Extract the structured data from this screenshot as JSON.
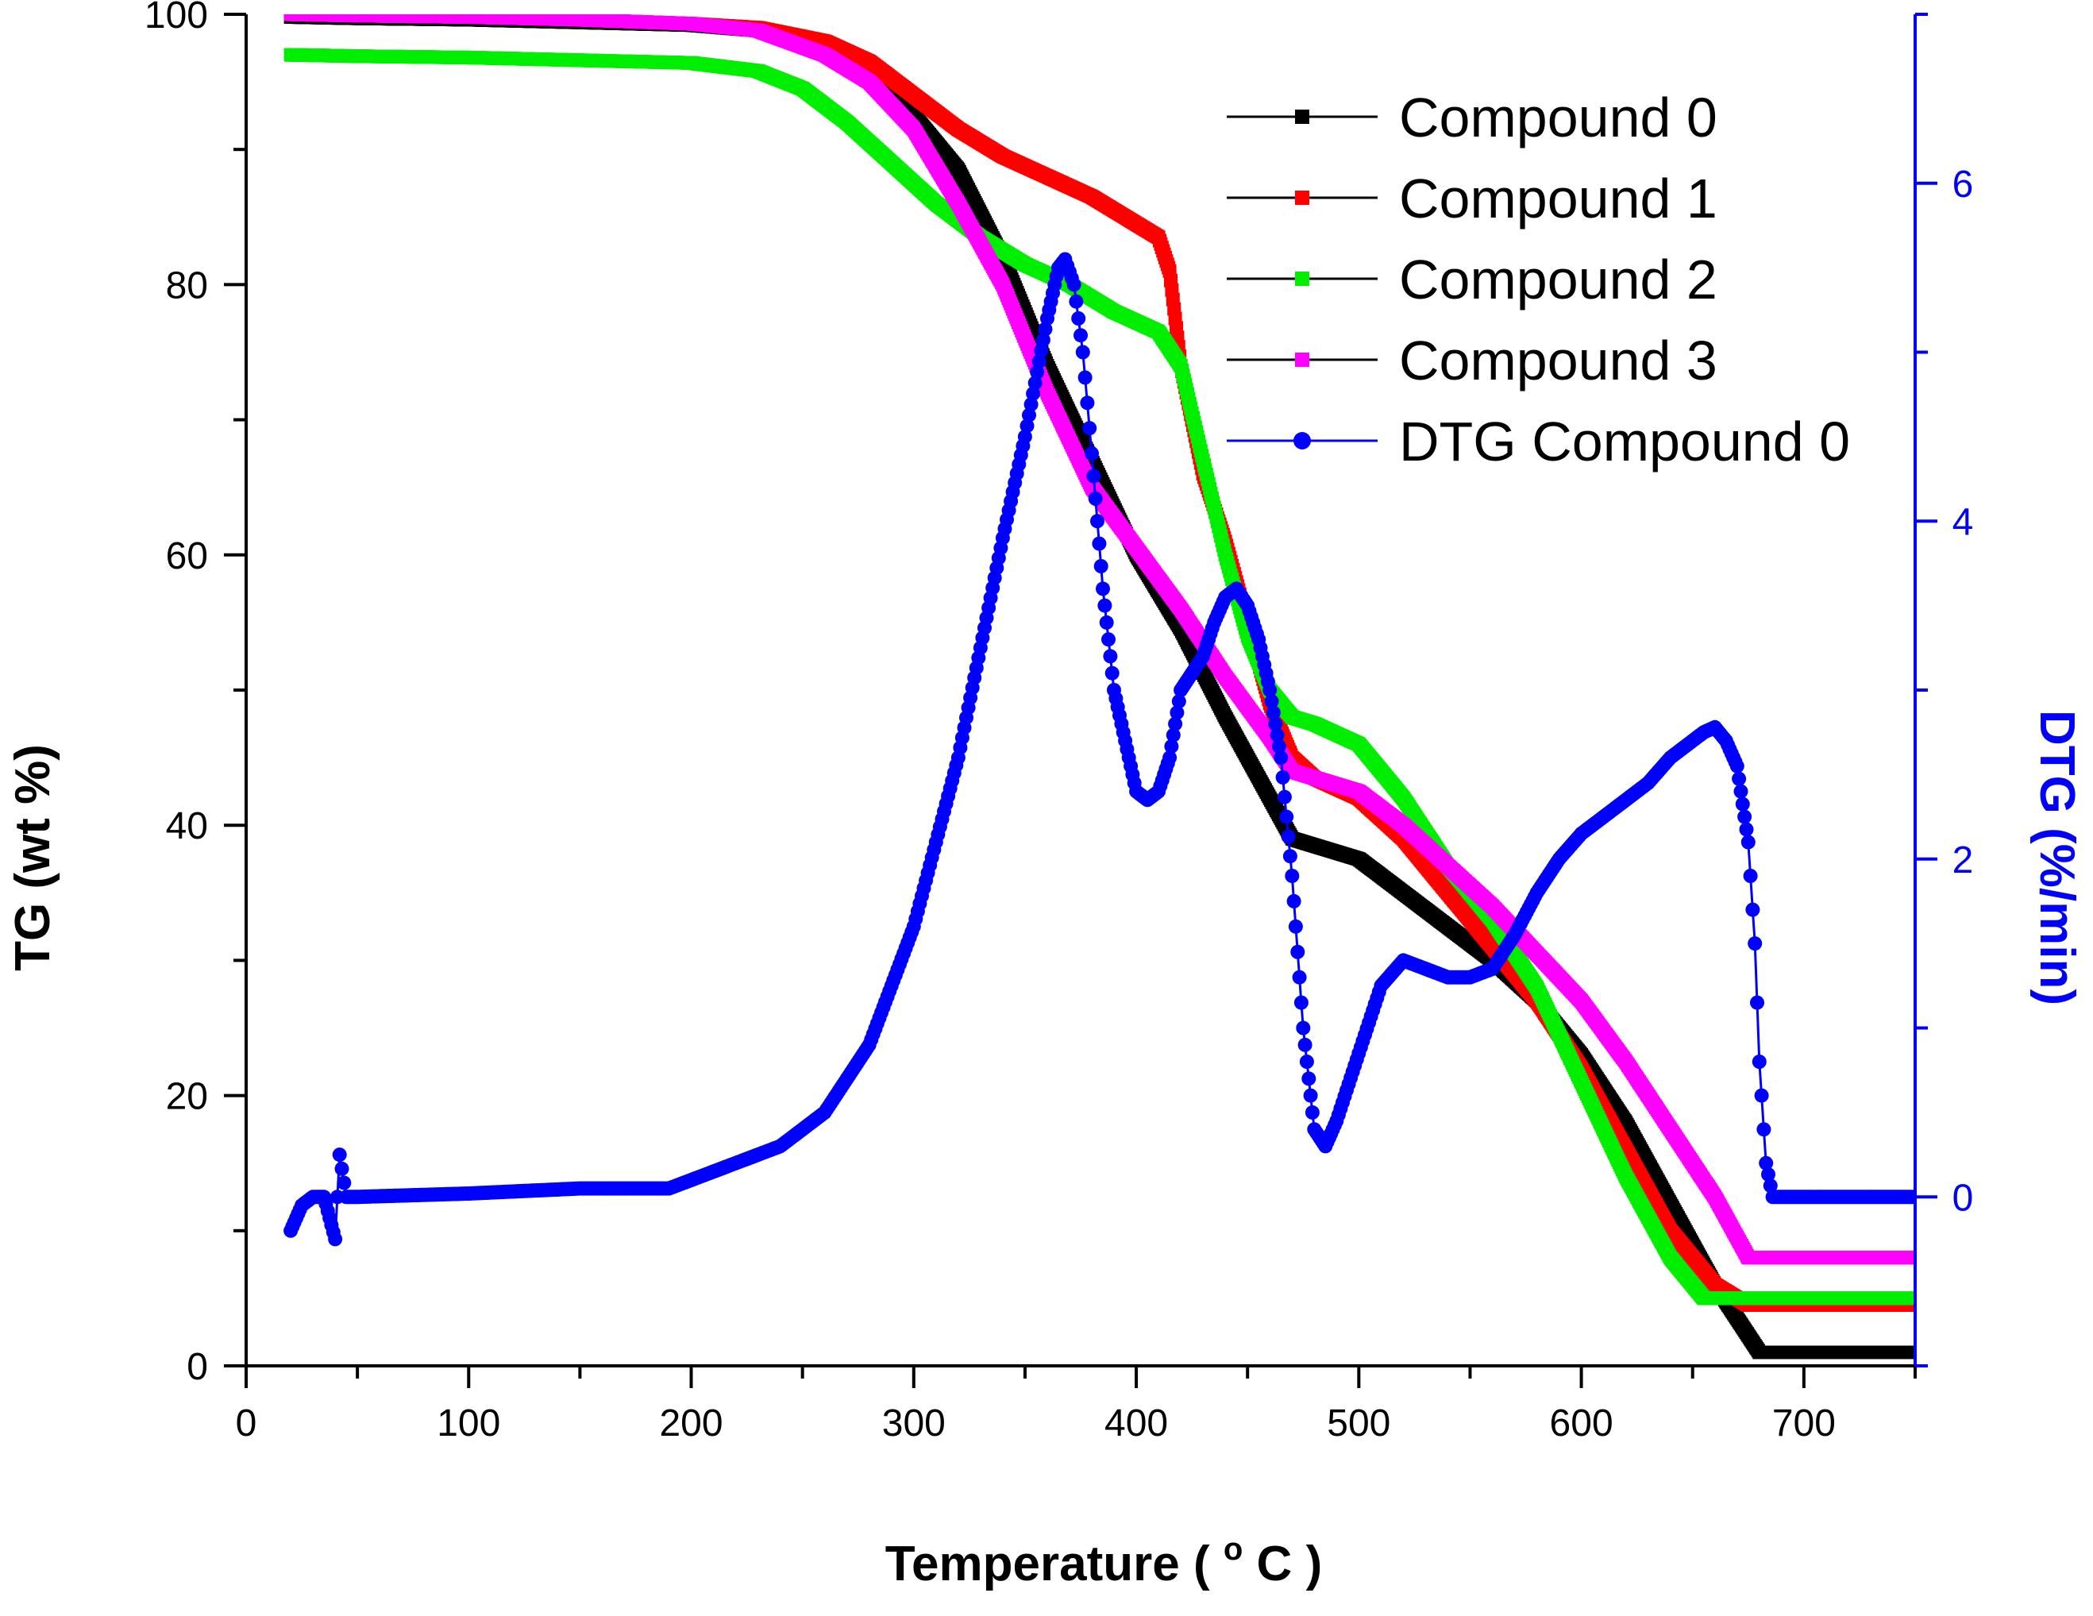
{
  "chart_data": {
    "type": "line",
    "title": "",
    "xlabel": "Temperature",
    "xlabel_unit_sup": "o",
    "xlabel_unit": "C",
    "ylabel": "TG (wt %)",
    "y2label": "DTG (%/min)",
    "xlim": [
      0,
      750
    ],
    "ylim": [
      0,
      100
    ],
    "y2lim": [
      -1,
      7
    ],
    "x_ticks": [
      0,
      100,
      200,
      300,
      400,
      500,
      600,
      700
    ],
    "y_ticks": [
      0,
      20,
      40,
      60,
      80,
      100
    ],
    "y2_ticks": [
      0,
      2,
      4,
      6
    ],
    "legend_position": "top-right",
    "colors": {
      "axis_left": "#000000",
      "axis_right": "#0000ff"
    },
    "series": [
      {
        "name": "Compound 0",
        "axis": "left",
        "color": "#000000",
        "marker": "square",
        "x": [
          20,
          50,
          100,
          150,
          200,
          230,
          260,
          280,
          300,
          320,
          340,
          360,
          380,
          400,
          420,
          440,
          460,
          470,
          480,
          500,
          520,
          540,
          560,
          580,
          600,
          620,
          640,
          660,
          680,
          700,
          750
        ],
        "y": [
          99.8,
          99.7,
          99.6,
          99.4,
          99.2,
          98.8,
          97.5,
          95.5,
          92.5,
          88.5,
          82,
          74,
          67,
          60,
          54.5,
          48,
          42,
          39,
          38.5,
          37.5,
          35,
          32.5,
          30,
          27,
          23,
          18,
          12,
          6,
          1,
          1,
          1
        ]
      },
      {
        "name": "Compound 1",
        "axis": "left",
        "color": "#ff0000",
        "marker": "square",
        "x": [
          20,
          50,
          100,
          150,
          200,
          230,
          260,
          280,
          300,
          320,
          340,
          360,
          380,
          400,
          410,
          415,
          420,
          430,
          440,
          450,
          460,
          470,
          480,
          500,
          520,
          540,
          560,
          580,
          600,
          620,
          640,
          660,
          675,
          700,
          750
        ],
        "y": [
          100,
          99.9,
          99.8,
          99.6,
          99.3,
          99,
          98,
          96.5,
          94,
          91.5,
          89.5,
          88,
          86.5,
          84.5,
          83.5,
          81,
          74,
          66,
          61,
          55,
          49,
          45,
          43.5,
          42,
          39,
          35,
          31,
          27,
          22,
          16,
          10,
          6,
          4.5,
          4.5,
          4.5
        ]
      },
      {
        "name": "Compound 2",
        "axis": "left",
        "color": "#00ee00",
        "marker": "square",
        "x": [
          20,
          50,
          100,
          150,
          200,
          230,
          250,
          270,
          290,
          310,
          330,
          350,
          370,
          390,
          410,
          420,
          430,
          440,
          450,
          460,
          470,
          480,
          500,
          520,
          540,
          560,
          580,
          600,
          620,
          640,
          655,
          700,
          750
        ],
        "y": [
          97,
          96.9,
          96.8,
          96.6,
          96.4,
          95.8,
          94.5,
          92,
          89,
          86,
          83.5,
          81.5,
          80,
          78,
          76.5,
          74,
          67,
          60,
          54,
          50,
          48,
          47.5,
          46,
          42,
          37,
          33,
          28,
          21,
          14,
          8,
          5,
          5,
          5
        ]
      },
      {
        "name": "Compound 3",
        "axis": "left",
        "color": "#ff00ff",
        "marker": "square",
        "x": [
          20,
          50,
          100,
          150,
          200,
          230,
          260,
          280,
          300,
          320,
          340,
          360,
          380,
          400,
          420,
          440,
          460,
          470,
          480,
          500,
          520,
          540,
          560,
          580,
          600,
          620,
          640,
          660,
          675,
          700,
          750
        ],
        "y": [
          100,
          99.9,
          99.8,
          99.6,
          99.3,
          98.8,
          97,
          95,
          91.5,
          86,
          80,
          72,
          65,
          60.5,
          56,
          51,
          46.5,
          44,
          43.5,
          42.5,
          40,
          37,
          34,
          30.5,
          27,
          22.5,
          17.5,
          12.5,
          8,
          8,
          8
        ]
      },
      {
        "name": "DTG Compound 0",
        "axis": "right",
        "color": "#0000ff",
        "marker": "circle",
        "x": [
          20,
          25,
          30,
          35,
          40,
          42,
          45,
          50,
          100,
          150,
          190,
          200,
          220,
          240,
          260,
          280,
          300,
          320,
          340,
          350,
          360,
          365,
          368,
          372,
          376,
          380,
          385,
          390,
          395,
          400,
          405,
          410,
          415,
          420,
          425,
          430,
          435,
          440,
          445,
          450,
          455,
          460,
          465,
          470,
          475,
          480,
          485,
          490,
          500,
          510,
          520,
          530,
          540,
          550,
          560,
          570,
          580,
          590,
          600,
          610,
          620,
          630,
          640,
          650,
          655,
          660,
          665,
          670,
          675,
          678,
          680,
          683,
          686,
          690,
          700,
          720,
          750
        ],
        "y": [
          -0.2,
          -0.05,
          0,
          0,
          -0.25,
          0.25,
          0,
          0,
          0.02,
          0.05,
          0.05,
          0.1,
          0.2,
          0.3,
          0.5,
          0.9,
          1.6,
          2.6,
          3.9,
          4.5,
          5.2,
          5.5,
          5.55,
          5.4,
          5.0,
          4.4,
          3.6,
          3.0,
          2.7,
          2.4,
          2.35,
          2.4,
          2.6,
          3.0,
          3.1,
          3.2,
          3.4,
          3.55,
          3.6,
          3.5,
          3.3,
          3.0,
          2.6,
          1.9,
          1.0,
          0.4,
          0.3,
          0.45,
          0.85,
          1.25,
          1.4,
          1.35,
          1.3,
          1.3,
          1.35,
          1.55,
          1.8,
          2.0,
          2.15,
          2.25,
          2.35,
          2.45,
          2.6,
          2.7,
          2.75,
          2.78,
          2.7,
          2.55,
          2.1,
          1.5,
          0.8,
          0.2,
          0,
          0,
          0,
          0,
          0
        ]
      }
    ]
  }
}
